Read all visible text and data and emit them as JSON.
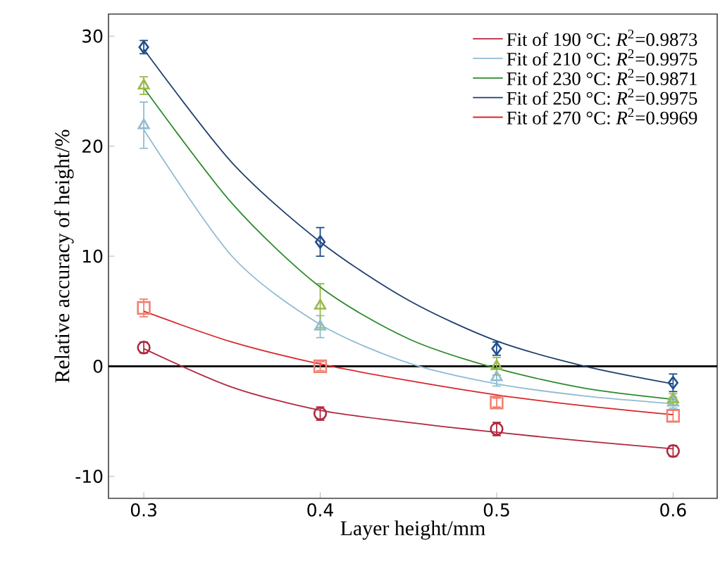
{
  "chart_data": {
    "type": "line",
    "xlabel": "Layer height/mm",
    "ylabel": "Relative accuracy of height/%",
    "xlim": [
      0.28,
      0.625
    ],
    "xticks": [
      0.3,
      0.4,
      0.5,
      0.6
    ],
    "ylim": [
      -12,
      32
    ],
    "yticks": [
      -10,
      0,
      10,
      20,
      30
    ],
    "grid": false,
    "legend": "top right",
    "ref_lines": [
      {
        "axis": "y",
        "value": 0,
        "color": "#000000",
        "line_style": "solid"
      }
    ],
    "series": [
      {
        "type": "scatter",
        "marker": "circle",
        "color": "#b0283f",
        "x": [
          0.3,
          0.4,
          0.5,
          0.6
        ],
        "values": [
          1.7,
          -4.3,
          -5.7,
          -7.7
        ],
        "errors": [
          0.5,
          0.6,
          0.6,
          0.5
        ]
      },
      {
        "type": "scatter",
        "marker": "triangle",
        "color": "#8fbcd4",
        "x": [
          0.3,
          0.4,
          0.5,
          0.6
        ],
        "values": [
          21.9,
          3.6,
          -1.0,
          -3.3
        ],
        "errors": [
          2.1,
          1.0,
          0.8,
          0.5
        ]
      },
      {
        "type": "scatter",
        "marker": "triangle",
        "color": "#9ab94a",
        "x": [
          0.3,
          0.4,
          0.5,
          0.6
        ],
        "values": [
          25.5,
          5.5,
          0.0,
          -3.0
        ],
        "errors": [
          0.8,
          2.0,
          0.8,
          0.5
        ]
      },
      {
        "type": "scatter",
        "marker": "diamond",
        "color": "#1f4e8c",
        "x": [
          0.3,
          0.4,
          0.5,
          0.6
        ],
        "values": [
          29.0,
          11.3,
          1.6,
          -1.5
        ],
        "errors": [
          0.6,
          1.3,
          0.6,
          0.8
        ]
      },
      {
        "type": "scatter",
        "marker": "square",
        "color": "#f08070",
        "x": [
          0.3,
          0.4,
          0.5,
          0.6
        ],
        "values": [
          5.3,
          0.0,
          -3.3,
          -4.5
        ],
        "errors": [
          0.8,
          0.4,
          0.4,
          0.5
        ]
      },
      {
        "name": "Fit of 190 °C: *R*$^{2}$=0.9873",
        "color": "#b0283f",
        "marker": "none",
        "x": [
          0.3,
          0.35,
          0.4,
          0.45,
          0.5,
          0.55,
          0.6
        ],
        "values": [
          1.6,
          -1.9,
          -4.0,
          -5.1,
          -6.0,
          -6.8,
          -7.5
        ]
      },
      {
        "name": "Fit of 210 °C: *R*$^{2}$=0.9975",
        "color": "#8fbcd4",
        "marker": "none",
        "x": [
          0.3,
          0.35,
          0.4,
          0.45,
          0.5,
          0.55,
          0.6
        ],
        "values": [
          21.5,
          10.0,
          3.8,
          0.3,
          -1.6,
          -2.7,
          -3.4
        ]
      },
      {
        "name": "Fit of 230 °C: *R*$^{2}$=0.9871",
        "color": "#2e8b2e",
        "marker": "none",
        "x": [
          0.3,
          0.35,
          0.4,
          0.45,
          0.5,
          0.55,
          0.6
        ],
        "values": [
          25.3,
          14.8,
          7.2,
          2.5,
          -0.2,
          -2.0,
          -3.0
        ]
      },
      {
        "name": "Fit of 250 °C: *R*$^{2}$=0.9975",
        "color": "#1f3f6e",
        "marker": "none",
        "x": [
          0.3,
          0.35,
          0.4,
          0.45,
          0.5,
          0.55,
          0.6
        ],
        "values": [
          28.8,
          18.5,
          11.3,
          6.0,
          2.3,
          0.0,
          -1.6
        ]
      },
      {
        "name": "Fit of 270 °C: *R*$^{2}$=0.9969",
        "color": "#d9262b",
        "marker": "none",
        "x": [
          0.3,
          0.35,
          0.4,
          0.45,
          0.5,
          0.55,
          0.6
        ],
        "values": [
          5.0,
          2.2,
          0.2,
          -1.3,
          -2.6,
          -3.6,
          -4.4
        ]
      }
    ]
  }
}
